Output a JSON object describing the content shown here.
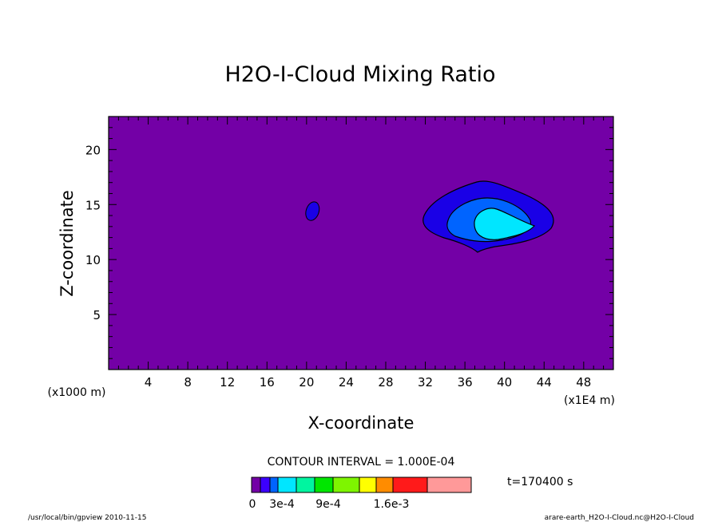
{
  "chart_data": {
    "type": "contour",
    "title": "H2O-I-Cloud Mixing Ratio",
    "xlabel": "X-coordinate",
    "ylabel": "Z-coordinate",
    "x_unit": "(x1E4 m)",
    "y_unit": "(x1000 m)",
    "x_ticks": [
      4,
      8,
      12,
      16,
      20,
      24,
      28,
      32,
      36,
      40,
      44,
      48
    ],
    "y_ticks": [
      5,
      10,
      15,
      20
    ],
    "xlim": [
      0,
      51
    ],
    "ylim": [
      0,
      23
    ],
    "contour_interval_label": "CONTOUR INTERVAL = 1.000E-04",
    "time_label": "t=170400 s",
    "colorbar": {
      "labels": [
        "0",
        "3e-4",
        "9e-4",
        "1.6e-3"
      ],
      "colors": [
        "#7300a6",
        "#3c00ff",
        "#0064ff",
        "#00e6ff",
        "#00f5a0",
        "#00e600",
        "#7ef500",
        "#ffff00",
        "#ff8c00",
        "#ff1a1a",
        "#ff9999"
      ]
    },
    "background_color": "#7300a6",
    "features": [
      {
        "name": "small-cloud",
        "center": [
          20.6,
          14.4
        ],
        "level_colors": [
          "#1a00e6"
        ]
      },
      {
        "name": "main-cloud",
        "center": [
          38.5,
          13.6
        ],
        "level_colors": [
          "#1a00e6",
          "#0064ff",
          "#00e6ff"
        ]
      }
    ]
  },
  "footer": {
    "left": "/usr/local/bin/gpview   2010-11-15",
    "right": "arare-earth_H2O-I-Cloud.nc@H2O-I-Cloud"
  }
}
